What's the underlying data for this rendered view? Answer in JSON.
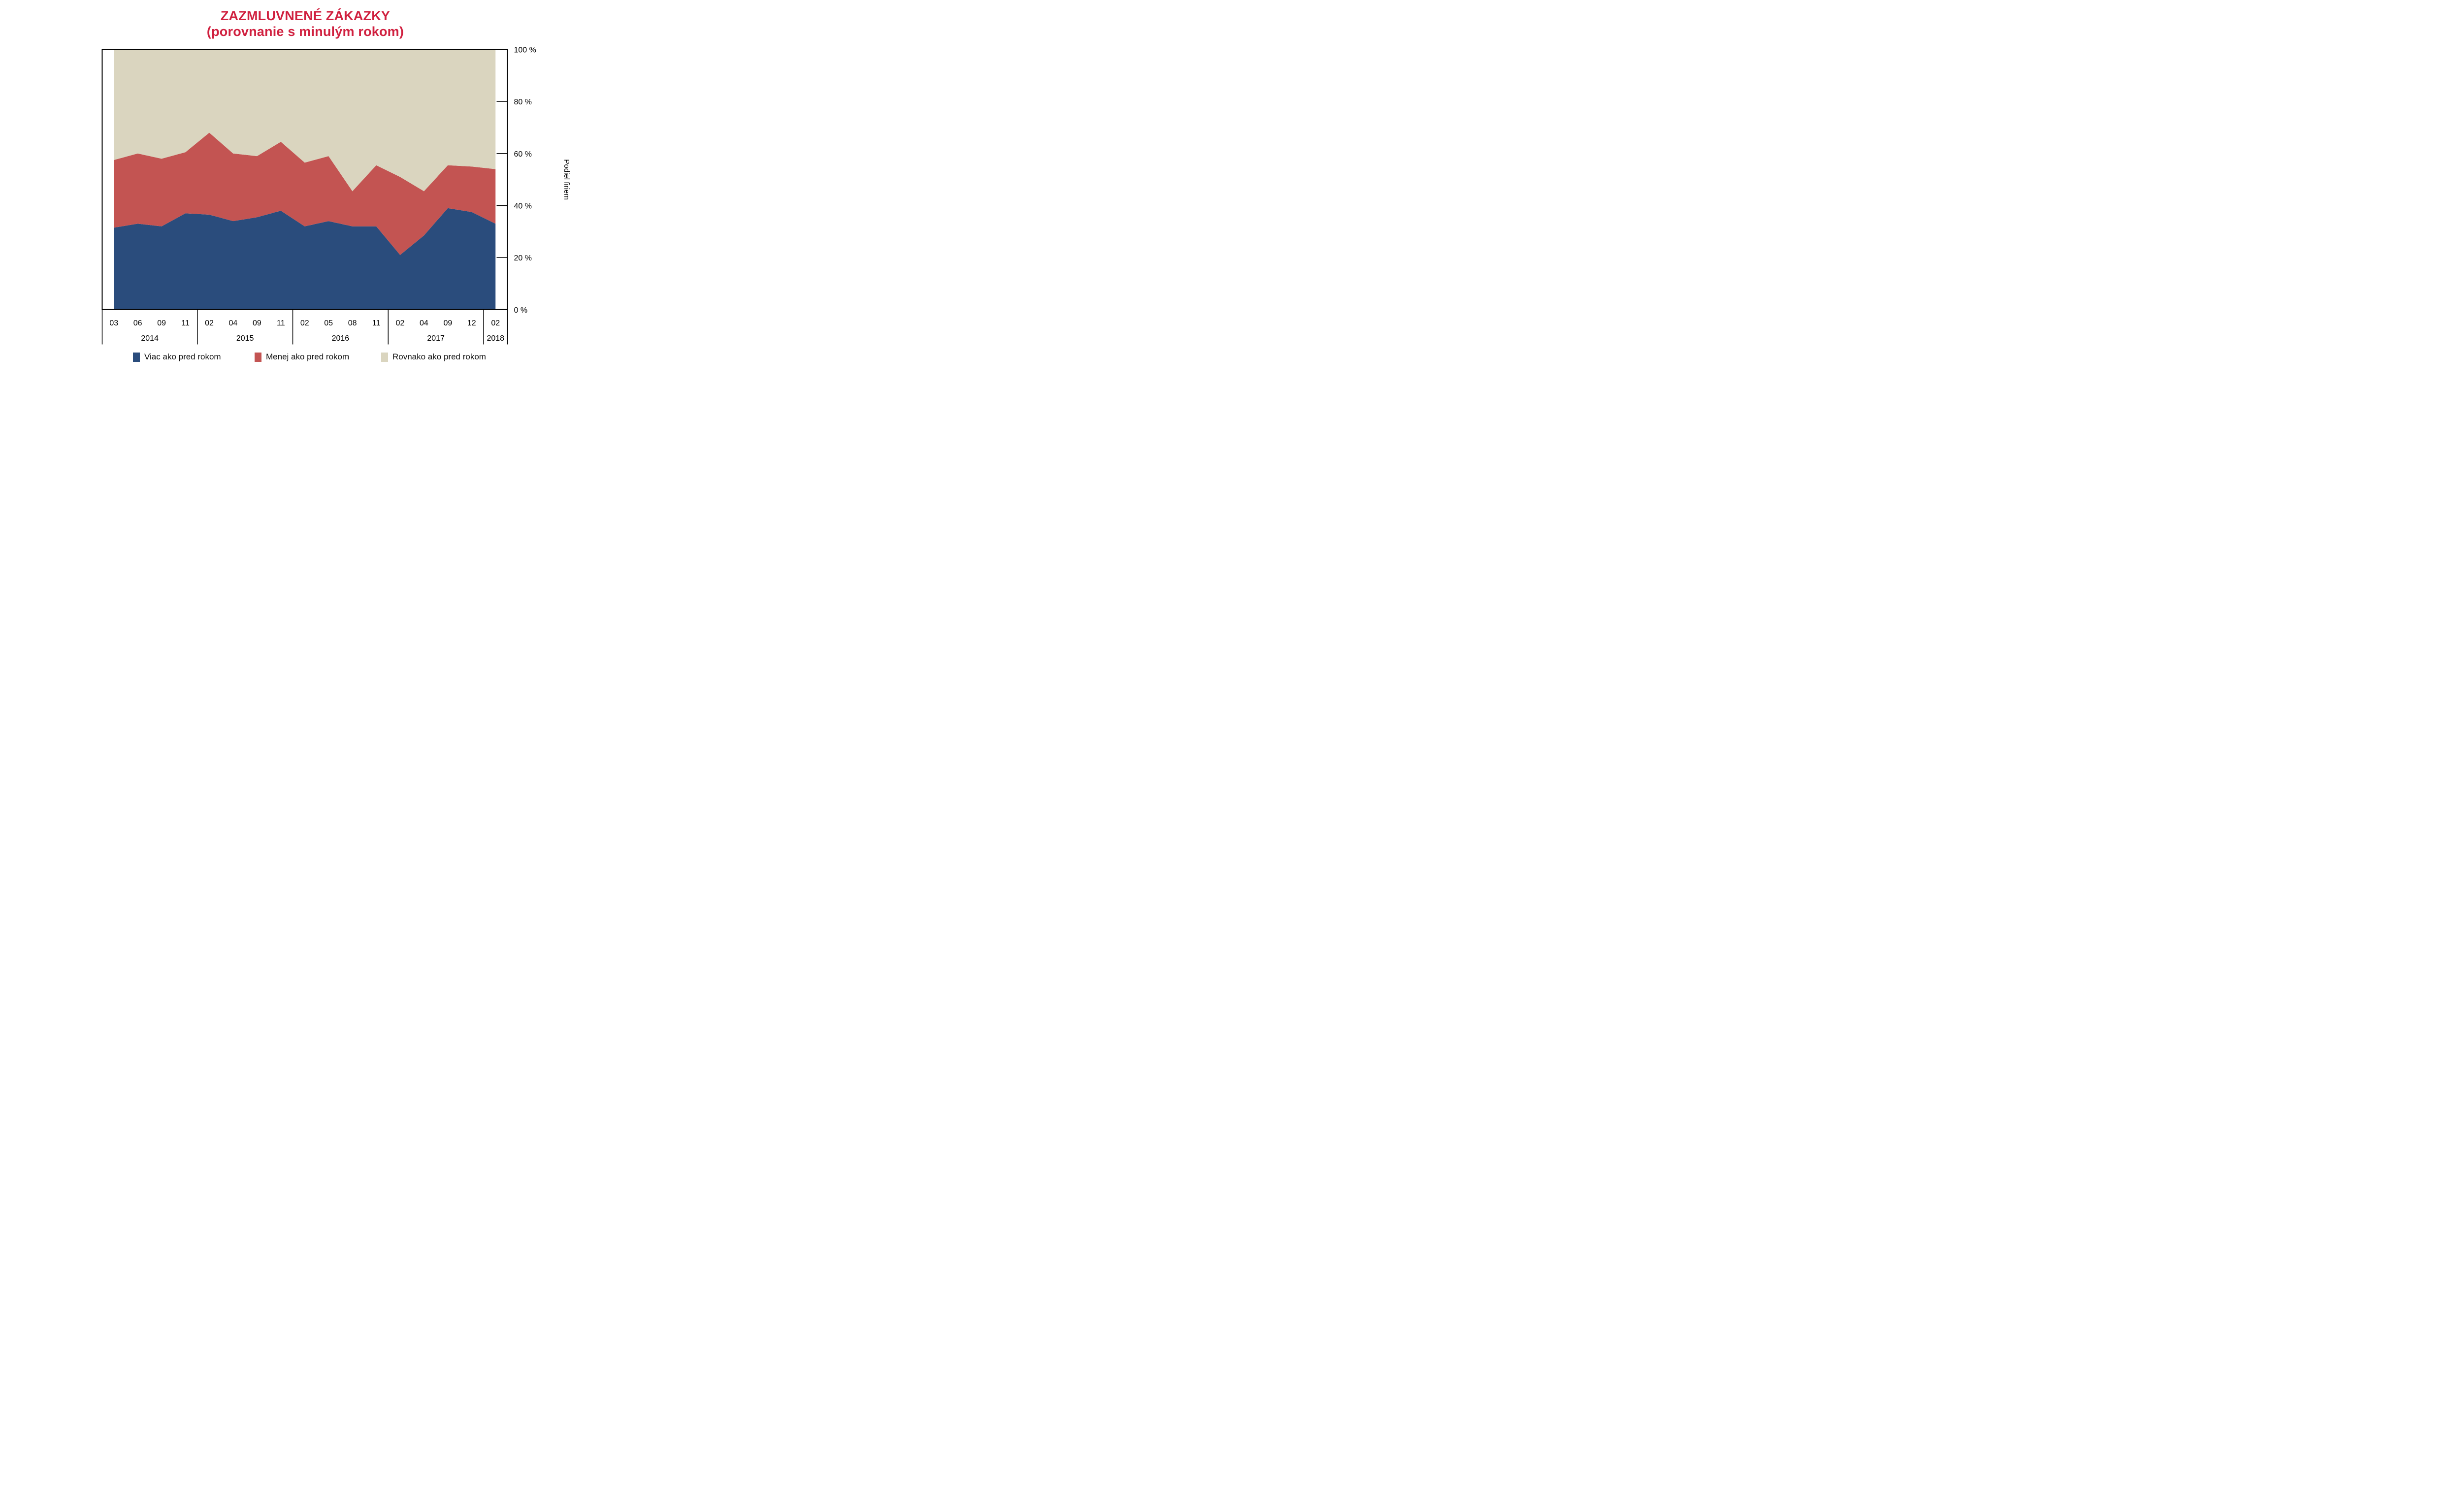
{
  "title": {
    "line1": "ZAZMLUVNENÉ ZÁKAZKY",
    "line2": "(porovnanie s minulým rokom)",
    "color": "#d0203f"
  },
  "chart_data": {
    "type": "area",
    "stacked": true,
    "title": "ZAZMLUVNENÉ ZÁKAZKY (porovnanie s minulým rokom)",
    "ylabel": "Podiel firiem",
    "unit": "%",
    "ylim": [
      0,
      100
    ],
    "grid": false,
    "legend_position": "bottom",
    "x_months": [
      "03",
      "06",
      "09",
      "11",
      "02",
      "04",
      "09",
      "11",
      "02",
      "05",
      "08",
      "11",
      "02",
      "04",
      "09",
      "12",
      "02"
    ],
    "year_groups": [
      {
        "label": "2014",
        "count": 4
      },
      {
        "label": "2015",
        "count": 4
      },
      {
        "label": "2016",
        "count": 4
      },
      {
        "label": "2017",
        "count": 4
      },
      {
        "label": "2018",
        "count": 1
      }
    ],
    "y_ticks": [
      "0 %",
      "20 %",
      "40 %",
      "60 %",
      "80 %",
      "100 %"
    ],
    "series": [
      {
        "name": "Viac ako pred rokom",
        "color": "#2a4c7c",
        "values": [
          31.5,
          33,
          32,
          37,
          36.5,
          34,
          35.5,
          38,
          32,
          34,
          32,
          32,
          21,
          28.5,
          39,
          37.5,
          33
        ]
      },
      {
        "name": "Menej ako pred rokom",
        "color": "#c35452",
        "values": [
          26,
          27,
          26,
          23.5,
          31.5,
          26,
          23.5,
          26.5,
          24.5,
          25,
          13.5,
          23.5,
          30,
          17,
          16.5,
          17.5,
          21
        ]
      },
      {
        "name": "Rovnako ako pred rokom",
        "color": "#dad5bf",
        "values": [
          42.5,
          40,
          42,
          39.5,
          32,
          40,
          41,
          35.5,
          43.5,
          41,
          54.5,
          44.5,
          49,
          54.5,
          44.5,
          45,
          46
        ]
      }
    ]
  },
  "axis": {
    "frame_color": "#000000",
    "text_color": "#000000"
  }
}
